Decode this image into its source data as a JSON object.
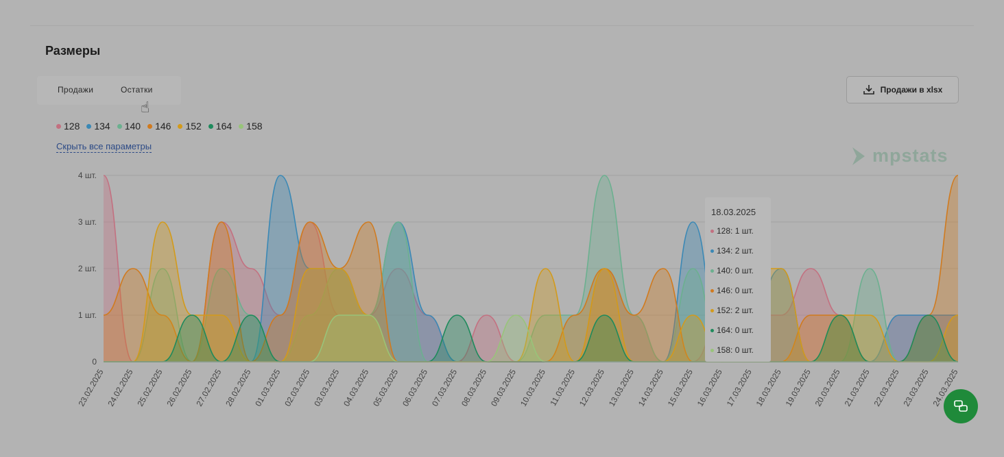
{
  "section_title": "Размеры",
  "tabs": [
    {
      "label": "Продажи"
    },
    {
      "label": "Остатки"
    }
  ],
  "export_button": {
    "label": "Продажи в xlsx",
    "icon": "download-icon"
  },
  "hide_link": "Скрыть все параметры",
  "logo_text": "mpstats",
  "legend": [
    {
      "label": "128",
      "color": "#c37080"
    },
    {
      "label": "134",
      "color": "#3a88b5"
    },
    {
      "label": "140",
      "color": "#6bb08f"
    },
    {
      "label": "146",
      "color": "#d07a1e"
    },
    {
      "label": "152",
      "color": "#d39a1a"
    },
    {
      "label": "164",
      "color": "#1e8a5c"
    },
    {
      "label": "158",
      "color": "#98c47a"
    }
  ],
  "tooltip": {
    "date": "18.03.2025",
    "rows": [
      {
        "label": "128: 1 шт.",
        "color": "#c37080"
      },
      {
        "label": "134: 2 шт.",
        "color": "#3a88b5"
      },
      {
        "label": "140: 0 шт.",
        "color": "#6bb08f"
      },
      {
        "label": "146: 0 шт.",
        "color": "#d07a1e"
      },
      {
        "label": "152: 2 шт.",
        "color": "#d39a1a"
      },
      {
        "label": "164: 0 шт.",
        "color": "#1e8a5c"
      },
      {
        "label": "158: 0 шт.",
        "color": "#98c47a"
      }
    ]
  },
  "chart_data": {
    "type": "area",
    "categories": [
      "23.02.2025",
      "24.02.2025",
      "25.02.2025",
      "26.02.2025",
      "27.02.2025",
      "28.02.2025",
      "01.03.2025",
      "02.03.2025",
      "03.03.2025",
      "04.03.2025",
      "05.03.2025",
      "06.03.2025",
      "07.03.2025",
      "08.03.2025",
      "09.03.2025",
      "10.03.2025",
      "11.03.2025",
      "12.03.2025",
      "13.03.2025",
      "14.03.2025",
      "15.03.2025",
      "16.03.2025",
      "17.03.2025",
      "18.03.2025",
      "19.03.2025",
      "20.03.2025",
      "21.03.2025",
      "22.03.2025",
      "23.03.2025",
      "24.03.2025"
    ],
    "y_ticks": [
      "0",
      "1 шт.",
      "2 шт.",
      "3 шт.",
      "4 шт."
    ],
    "ylim": [
      0,
      4
    ],
    "grid": true,
    "series": [
      {
        "name": "128",
        "color": "#c37080",
        "values": [
          4,
          0,
          0,
          0,
          3,
          2,
          1,
          3,
          1,
          1,
          2,
          1,
          0,
          1,
          0,
          0,
          0,
          2,
          1,
          0,
          0,
          1,
          1,
          1,
          2,
          1,
          0,
          1,
          1,
          1
        ]
      },
      {
        "name": "134",
        "color": "#3a88b5",
        "values": [
          0,
          0,
          0,
          0,
          0,
          0,
          4,
          2,
          2,
          1,
          3,
          1,
          0,
          0,
          0,
          0,
          0,
          0,
          0,
          0,
          3,
          0,
          1,
          2,
          0,
          0,
          0,
          1,
          1,
          1
        ]
      },
      {
        "name": "140",
        "color": "#6bb08f",
        "values": [
          0,
          0,
          2,
          0,
          2,
          1,
          0,
          1,
          2,
          1,
          3,
          0,
          0,
          0,
          0,
          1,
          1,
          4,
          1,
          0,
          2,
          0,
          0,
          0,
          0,
          0,
          2,
          0,
          0,
          0
        ]
      },
      {
        "name": "146",
        "color": "#d07a1e",
        "values": [
          1,
          2,
          1,
          0,
          3,
          0,
          1,
          3,
          2,
          3,
          0,
          0,
          0,
          0,
          0,
          0,
          1,
          2,
          1,
          2,
          0,
          0,
          0,
          0,
          1,
          1,
          0,
          0,
          1,
          4
        ]
      },
      {
        "name": "152",
        "color": "#d39a1a",
        "values": [
          0,
          0,
          3,
          1,
          1,
          0,
          0,
          2,
          2,
          1,
          0,
          0,
          0,
          0,
          0,
          2,
          0,
          2,
          0,
          0,
          1,
          0,
          2,
          2,
          0,
          1,
          1,
          0,
          0,
          1
        ]
      },
      {
        "name": "164",
        "color": "#1e8a5c",
        "values": [
          0,
          0,
          0,
          1,
          0,
          1,
          0,
          0,
          0,
          0,
          0,
          0,
          1,
          0,
          0,
          0,
          0,
          1,
          0,
          0,
          0,
          0,
          0,
          0,
          0,
          1,
          0,
          0,
          1,
          0
        ]
      },
      {
        "name": "158",
        "color": "#98c47a",
        "values": [
          0,
          0,
          0,
          0,
          0,
          0,
          0,
          0,
          1,
          1,
          0,
          0,
          0,
          0,
          1,
          0,
          0,
          0,
          0,
          0,
          0,
          0,
          0,
          0,
          0,
          0,
          0,
          0,
          0,
          0
        ]
      }
    ]
  },
  "chat_icon": "chat-icon"
}
